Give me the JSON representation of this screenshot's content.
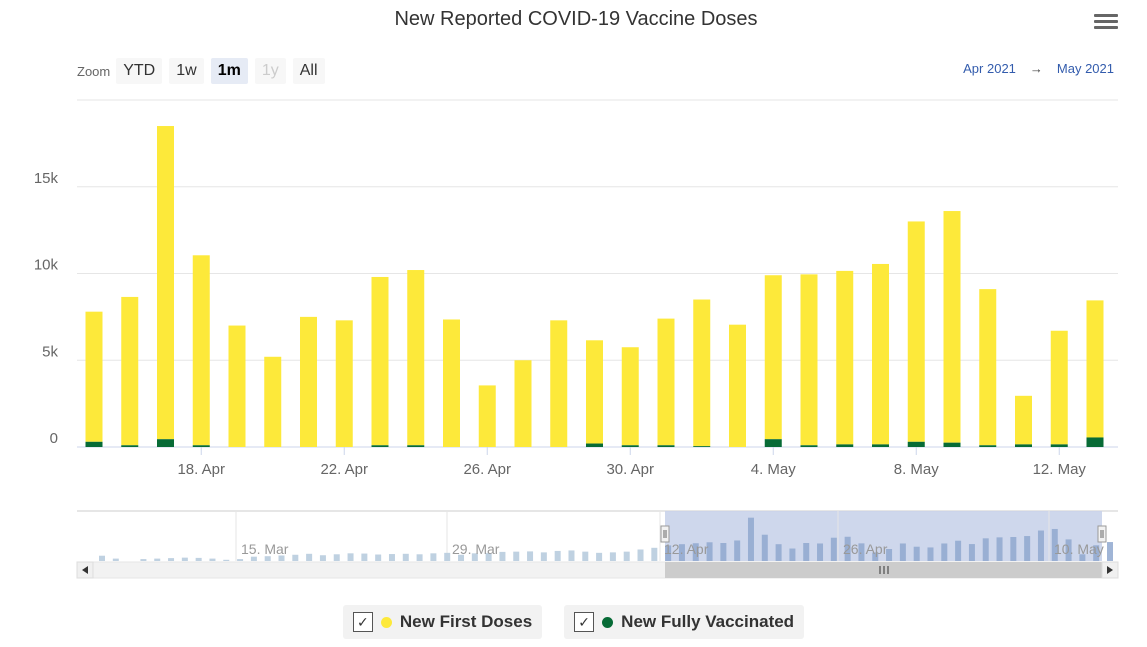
{
  "title": "New Reported COVID-19 Vaccine Doses",
  "menu_icon": "hamburger-menu-icon",
  "zoom": {
    "label": "Zoom",
    "buttons": [
      "YTD",
      "1w",
      "1m",
      "1y",
      "All"
    ],
    "active": "1m",
    "disabled": "1y"
  },
  "range": {
    "from": "Apr 2021",
    "arrow": "→",
    "to": "May 2021"
  },
  "colors": {
    "first_doses": "#fde93a",
    "fully_vaccinated": "#076b36",
    "navigator_bar": "#b4c9dc",
    "navigator_mask": "#c9d3ea"
  },
  "chart_data": {
    "type": "bar",
    "stacked": true,
    "title": "New Reported COVID-19 Vaccine Doses",
    "x": [
      "2021-04-15",
      "2021-04-16",
      "2021-04-17",
      "2021-04-18",
      "2021-04-19",
      "2021-04-20",
      "2021-04-21",
      "2021-04-22",
      "2021-04-23",
      "2021-04-24",
      "2021-04-25",
      "2021-04-26",
      "2021-04-27",
      "2021-04-28",
      "2021-04-29",
      "2021-04-30",
      "2021-05-01",
      "2021-05-02",
      "2021-05-03",
      "2021-05-04",
      "2021-05-05",
      "2021-05-06",
      "2021-05-07",
      "2021-05-08",
      "2021-05-09",
      "2021-05-10",
      "2021-05-11",
      "2021-05-12",
      "2021-05-13"
    ],
    "series": [
      {
        "name": "New First Doses",
        "values": [
          7500,
          8550,
          18050,
          10950,
          7000,
          5200,
          7500,
          7300,
          9700,
          10100,
          7350,
          3550,
          5000,
          7300,
          5950,
          5650,
          7300,
          8450,
          7050,
          9450,
          9850,
          10000,
          10400,
          12700,
          13350,
          9000,
          2800,
          6550,
          7900
        ]
      },
      {
        "name": "New Fully Vaccinated",
        "values": [
          300,
          100,
          450,
          100,
          0,
          0,
          0,
          0,
          100,
          100,
          0,
          0,
          0,
          0,
          200,
          100,
          100,
          50,
          0,
          450,
          100,
          150,
          150,
          300,
          250,
          100,
          150,
          150,
          550
        ]
      }
    ],
    "x_ticks": [
      "18. Apr",
      "22. Apr",
      "26. Apr",
      "30. Apr",
      "4. May",
      "8. May",
      "12. May"
    ],
    "y_ticks": [
      "0",
      "5k",
      "10k",
      "15k"
    ],
    "ylim": [
      0,
      20000
    ],
    "grid": true,
    "legend_position": "bottom-center"
  },
  "navigator": {
    "ticks": [
      "15. Mar",
      "29. Mar",
      "12. Apr",
      "26. Apr",
      "10. May"
    ],
    "values": [
      2200,
      1000,
      0,
      800,
      1000,
      1200,
      1400,
      1300,
      1000,
      500,
      800,
      1800,
      2000,
      2300,
      2600,
      3000,
      2400,
      2800,
      3200,
      3100,
      2700,
      2900,
      3000,
      2800,
      3200,
      3400,
      2600,
      3200,
      3300,
      3800,
      3900,
      4000,
      3600,
      4200,
      4400,
      3900,
      3400,
      3600,
      3900,
      4800,
      5500,
      6500,
      7000,
      7400,
      7800,
      7500,
      8550,
      18050,
      10950,
      7000,
      5200,
      7500,
      7300,
      9700,
      10100,
      7350,
      3550,
      5000,
      7300,
      5950,
      5650,
      7300,
      8450,
      7050,
      9450,
      9850,
      10000,
      10400,
      12700,
      13350,
      9000,
      2800,
      6550,
      7900
    ]
  },
  "legend": [
    {
      "label": "New First Doses",
      "checked": true
    },
    {
      "label": "New Fully Vaccinated",
      "checked": true
    }
  ]
}
